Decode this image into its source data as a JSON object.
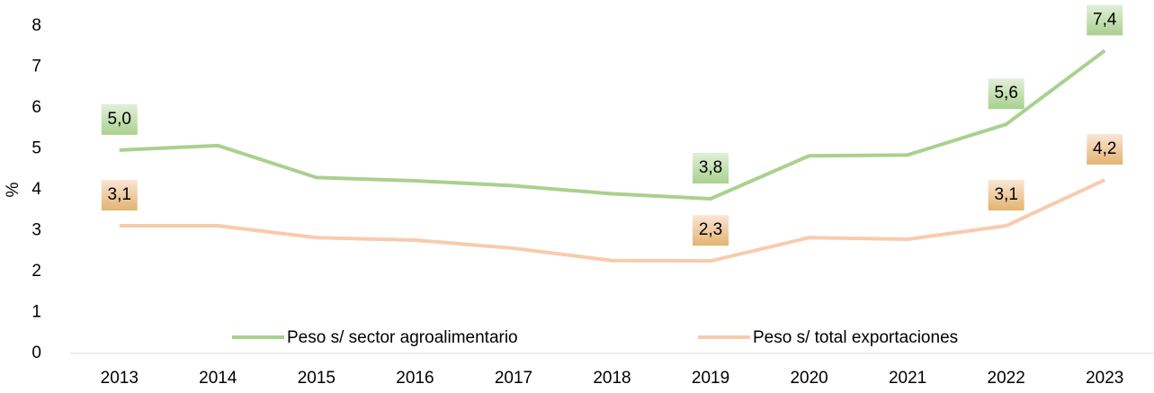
{
  "chart_data": {
    "type": "line",
    "y_label": "%",
    "categories": [
      "2013",
      "2014",
      "2015",
      "2016",
      "2017",
      "2018",
      "2019",
      "2020",
      "2021",
      "2022",
      "2023"
    ],
    "series": [
      {
        "name": "Peso s/ sector agroalimentario",
        "color": "#a9d18e",
        "values": [
          4.97,
          5.08,
          4.3,
          4.22,
          4.1,
          3.9,
          3.78,
          4.83,
          4.85,
          5.6,
          7.4
        ],
        "value_labels": [
          "5,0",
          null,
          null,
          null,
          null,
          null,
          "3,8",
          null,
          null,
          "5,6",
          "7,4"
        ]
      },
      {
        "name": "Peso s/ total exportaciones",
        "color": "#f8cbad",
        "values": [
          3.12,
          3.12,
          2.83,
          2.77,
          2.57,
          2.27,
          2.26,
          2.83,
          2.79,
          3.12,
          4.24
        ],
        "value_labels": [
          "3,1",
          null,
          null,
          null,
          null,
          null,
          "2,3",
          null,
          null,
          "3,1",
          "4,2"
        ]
      }
    ],
    "ylim": [
      0,
      8
    ],
    "yticks": [
      0,
      1,
      2,
      3,
      4,
      5,
      6,
      7,
      8
    ],
    "grid": false,
    "legend": "bottom"
  }
}
